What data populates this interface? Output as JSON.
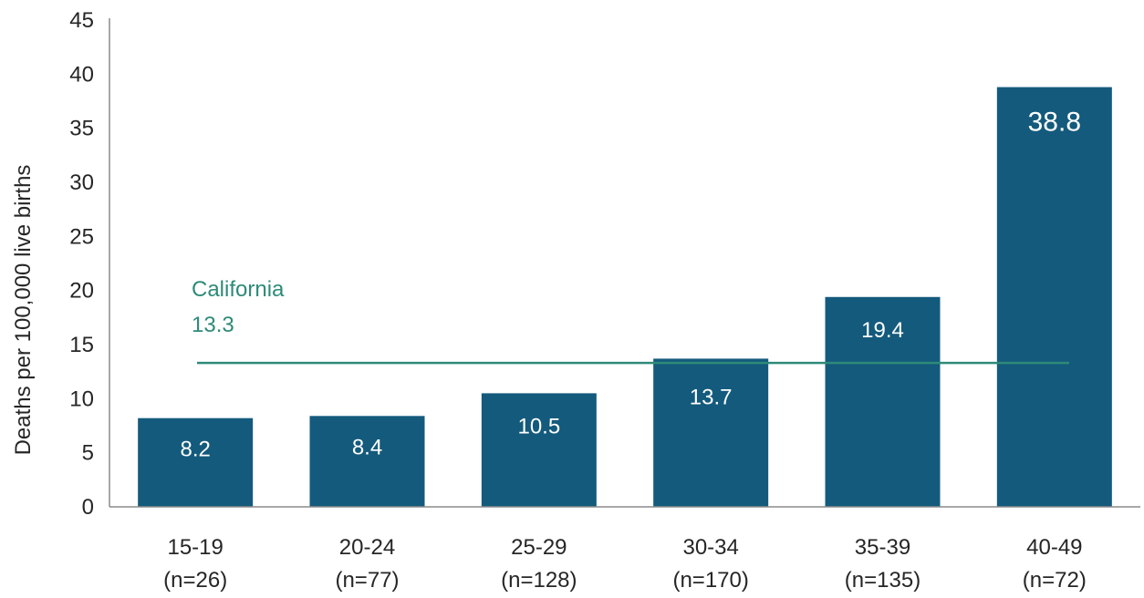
{
  "chart_data": {
    "type": "bar",
    "categories": [
      "15-19",
      "20-24",
      "25-29",
      "30-34",
      "35-39",
      "40-49"
    ],
    "category_sublabels": [
      "(n=26)",
      "(n=77)",
      "(n=128)",
      "(n=170)",
      "(n=135)",
      "(n=72)"
    ],
    "values": [
      8.2,
      8.4,
      10.5,
      13.7,
      19.4,
      38.8
    ],
    "value_labels": [
      "8.2",
      "8.4",
      "10.5",
      "13.7",
      "19.4",
      "38.8"
    ],
    "ylabel": "Deaths per 100,000  live births",
    "xlabel": "",
    "ylim": [
      0,
      45
    ],
    "yticks": [
      0,
      5,
      10,
      15,
      20,
      25,
      30,
      35,
      40,
      45
    ],
    "grid": false,
    "reference_line": {
      "name": "California",
      "value": 13.3,
      "label": "13.3"
    },
    "colors": {
      "bar": "#145a7c",
      "reference": "#2e8a78",
      "axis": "#8c8c8c"
    }
  }
}
